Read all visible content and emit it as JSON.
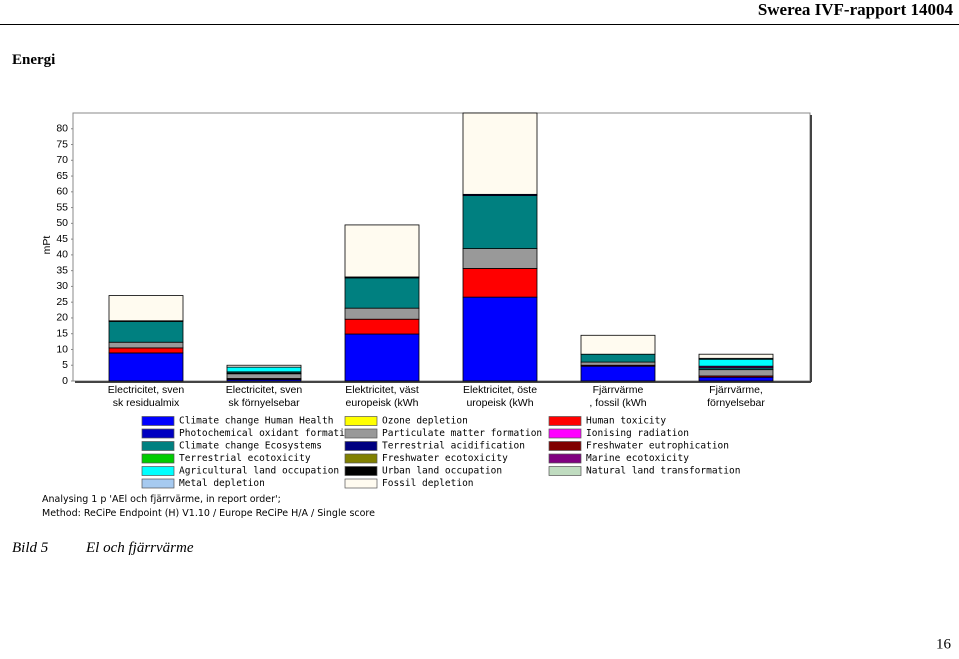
{
  "header": {
    "report": "Swerea IVF-rapport 14004"
  },
  "section": {
    "title": "Energi"
  },
  "chart_data": {
    "type": "stacked_bar",
    "y_label": "mPt",
    "categories": [
      "Electricitet, sven\nsk residualmix",
      "Electricitet, sven\nsk förnyelsebar",
      "Elektricitet, väst\neuropeisk (kWh",
      "Elektricitet, öste\nuropeisk (kWh",
      "Fjärrvärme\n, fossil (kWh",
      "Fjärrvärme,\nförnyelsebar"
    ],
    "ylim": [
      0,
      85
    ],
    "yticks": [
      0,
      5,
      10,
      15,
      20,
      25,
      30,
      35,
      40,
      45,
      50,
      55,
      60,
      65,
      70,
      75,
      80
    ],
    "series": [
      {
        "name": "Climate change Human Health",
        "color": "#0000ff",
        "values": [
          8.9,
          0.5,
          14.9,
          26.6,
          4.7,
          1.2
        ]
      },
      {
        "name": "Ozone depletion",
        "color": "#ffff00",
        "values": [
          0,
          0,
          0,
          0,
          0,
          0
        ]
      },
      {
        "name": "Human toxicity",
        "color": "#ff0000",
        "values": [
          1.6,
          0.3,
          4.7,
          9.1,
          0.3,
          0.4
        ]
      },
      {
        "name": "Photochemical oxidant formation",
        "color": "#0000c0",
        "values": [
          0,
          0,
          0,
          0,
          0,
          0
        ]
      },
      {
        "name": "Particulate matter formation",
        "color": "#999999",
        "values": [
          1.8,
          1.5,
          3.5,
          6.3,
          1.0,
          2.0
        ]
      },
      {
        "name": "Ionising radiation",
        "color": "#ff00ff",
        "values": [
          0,
          0.2,
          0,
          0,
          0,
          0
        ]
      },
      {
        "name": "Climate change Ecosystems",
        "color": "#008080",
        "values": [
          6.6,
          0.4,
          9.6,
          16.8,
          2.5,
          0.6
        ]
      },
      {
        "name": "Terrestrial acidification",
        "color": "#000080",
        "values": [
          0.2,
          0,
          0.3,
          0.4,
          0,
          0
        ]
      },
      {
        "name": "Freshwater eutrophication",
        "color": "#800000",
        "values": [
          0,
          0,
          0,
          0,
          0,
          0
        ]
      },
      {
        "name": "Terrestrial ecotoxicity",
        "color": "#00cc00",
        "values": [
          0,
          0,
          0,
          0,
          0,
          0
        ]
      },
      {
        "name": "Freshwater ecotoxicity",
        "color": "#808000",
        "values": [
          0,
          0,
          0,
          0,
          0,
          0
        ]
      },
      {
        "name": "Marine ecotoxicity",
        "color": "#800080",
        "values": [
          0,
          0,
          0,
          0,
          0,
          0.5
        ]
      },
      {
        "name": "Agricultural land occupation",
        "color": "#00ffff",
        "values": [
          0,
          1.5,
          0,
          0,
          0,
          2.2
        ]
      },
      {
        "name": "Urban land occupation",
        "color": "#000000",
        "values": [
          0,
          0,
          0,
          0,
          0,
          0
        ]
      },
      {
        "name": "Natural land transformation",
        "color": "#c0dcc0",
        "values": [
          0,
          0,
          0,
          0,
          0,
          0
        ]
      },
      {
        "name": "Metal depletion",
        "color": "#a6caf0",
        "values": [
          0,
          0,
          0,
          0,
          0,
          0.3
        ]
      },
      {
        "name": "Fossil depletion",
        "color": "#fffbf0",
        "values": [
          8.0,
          0.6,
          16.5,
          25.8,
          6.0,
          1.3
        ]
      }
    ]
  },
  "notes": [
    "Analysing 1 p 'AEl och fjärrvärme, in report order';",
    "Method: ReCiPe Endpoint (H) V1.10 / Europe ReCiPe H/A / Single score"
  ],
  "caption": {
    "label": "Bild 5",
    "text": "El och fjärrvärme"
  },
  "page_number": "16"
}
